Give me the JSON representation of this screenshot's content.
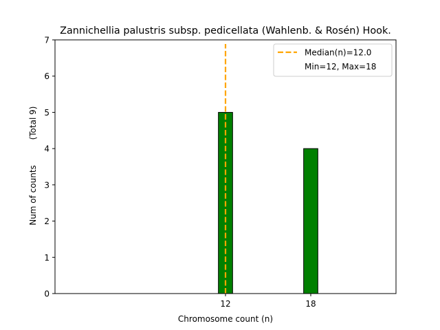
{
  "chart_data": {
    "type": "bar",
    "title": "Zannichellia palustris subsp. pedicellata (Wahlenb. & Rosén) Hook.",
    "xlabel": "Chromosome count (n)",
    "ylabel": "Num of counts",
    "ylabel_total": "(Total 9)",
    "x": [
      12,
      18
    ],
    "values": [
      5,
      4
    ],
    "xticks": [
      12,
      18
    ],
    "yticks": [
      0,
      1,
      2,
      3,
      4,
      5,
      6,
      7
    ],
    "xlim": [
      0,
      24
    ],
    "ylim": [
      0,
      7
    ],
    "bar_width": 1,
    "bar_color": "#008000",
    "median": 12.0,
    "median_color": "#FFA500",
    "legend": {
      "placement": "top-right",
      "median_label": "Median(n)=12.0",
      "range_label": "Min=12, Max=18"
    },
    "grid": false
  }
}
